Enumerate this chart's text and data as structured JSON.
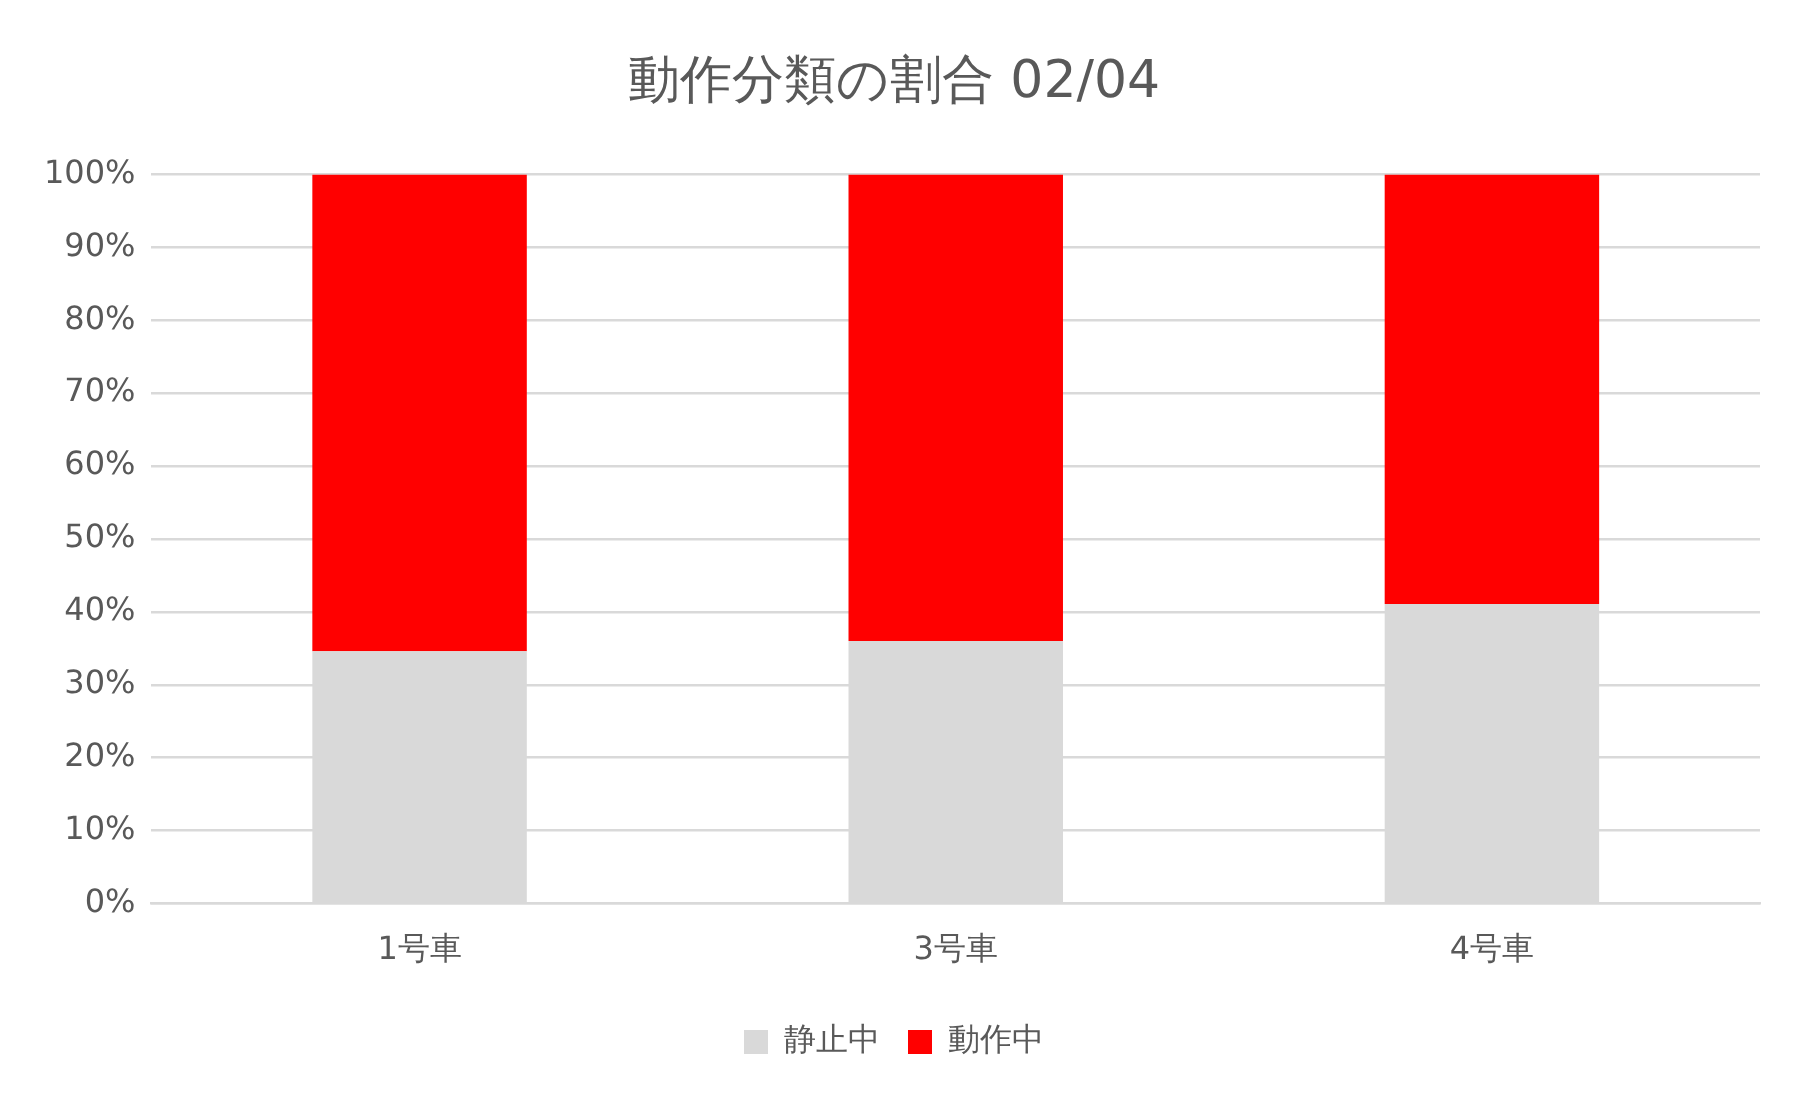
{
  "chart_data": {
    "type": "bar",
    "title": "動作分類の割合 02/04",
    "categories": [
      "1号車",
      "3号車",
      "4号車"
    ],
    "stacked": true,
    "series": [
      {
        "name": "静止中",
        "color": "#d9d9d9",
        "values": [
          34.6,
          36.0,
          41.1
        ]
      },
      {
        "name": "動作中",
        "color": "#ff0000",
        "values": [
          65.4,
          64.0,
          58.9
        ]
      }
    ],
    "ylim": [
      0,
      100
    ],
    "yticks": [
      {
        "value": 0,
        "label": "0%"
      },
      {
        "value": 10,
        "label": "10%"
      },
      {
        "value": 20,
        "label": "20%"
      },
      {
        "value": 30,
        "label": "30%"
      },
      {
        "value": 40,
        "label": "40%"
      },
      {
        "value": 50,
        "label": "50%"
      },
      {
        "value": 60,
        "label": "60%"
      },
      {
        "value": 70,
        "label": "70%"
      },
      {
        "value": 80,
        "label": "80%"
      },
      {
        "value": 90,
        "label": "90%"
      },
      {
        "value": 100,
        "label": "100%"
      }
    ],
    "grid": "y",
    "legend": "bottom"
  }
}
